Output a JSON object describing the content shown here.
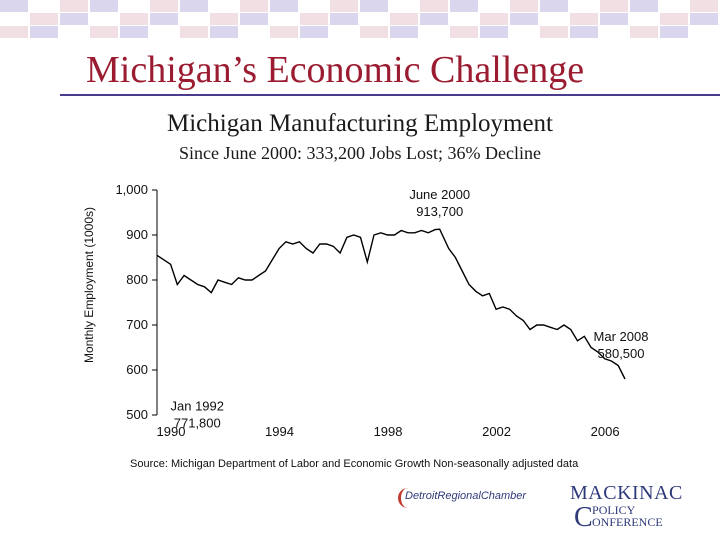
{
  "slide": {
    "title": "Michigan’s Economic Challenge",
    "source": "Source:  Michigan Department of Labor and Economic Growth Non-seasonally adjusted data",
    "logos": {
      "detroit_regional_chamber": "DetroitRegionalChamber",
      "mackinac_top": "MACKINAC",
      "mackinac_policy": "OLICY",
      "mackinac_conference": "ONFERENCE",
      "mackinac_p": "P",
      "mackinac_c": "C"
    },
    "colors": {
      "accent": "#9b1b30",
      "rule": "#4a3b8c",
      "series": "#000000"
    }
  },
  "chart_data": {
    "type": "line",
    "title": "Michigan Manufacturing Employment",
    "subtitle": "Since June 2000:  333,200 Jobs Lost; 36% Decline",
    "ylabel": "Monthly Employment (1000s)",
    "xlabel": "",
    "ylim": [
      500,
      1000
    ],
    "xlim": [
      1990,
      2007.25
    ],
    "yticks": [
      500,
      600,
      700,
      800,
      900,
      1000
    ],
    "ytick_labels": [
      "500",
      "600",
      "700",
      "800",
      "900",
      "1,000"
    ],
    "xticks": [
      1990,
      1994,
      1998,
      2002,
      2006
    ],
    "xtick_labels": [
      "1990",
      "1994",
      "1998",
      "2002",
      "2006"
    ],
    "grid": false,
    "legend": "none",
    "series": [
      {
        "x": [
          1990.0,
          1990.25,
          1990.5,
          1990.75,
          1991.0,
          1991.25,
          1991.5,
          1991.75,
          1992.0,
          1992.25,
          1992.5,
          1992.75,
          1993.0,
          1993.25,
          1993.5,
          1993.75,
          1994.0,
          1994.25,
          1994.5,
          1994.75,
          1995.0,
          1995.25,
          1995.5,
          1995.75,
          1996.0,
          1996.25,
          1996.5,
          1996.75,
          1997.0,
          1997.25,
          1997.5,
          1997.75,
          1998.0,
          1998.25,
          1998.5,
          1998.75,
          1999.0,
          1999.25,
          1999.5,
          1999.75,
          2000.0,
          2000.25,
          2000.42,
          2000.75,
          2001.0,
          2001.25,
          2001.5,
          2001.75,
          2002.0,
          2002.25,
          2002.5,
          2002.75,
          2003.0,
          2003.25,
          2003.5,
          2003.75,
          2004.0,
          2004.25,
          2004.5,
          2004.75,
          2005.0,
          2005.25,
          2005.5,
          2005.75,
          2006.0,
          2006.25,
          2006.5,
          2006.75,
          2007.0,
          2007.25
        ],
        "y": [
          855,
          845,
          835,
          790,
          810,
          800,
          790,
          785,
          772,
          800,
          795,
          790,
          805,
          800,
          800,
          810,
          820,
          845,
          870,
          885,
          880,
          885,
          870,
          860,
          880,
          880,
          875,
          860,
          895,
          900,
          895,
          840,
          900,
          905,
          900,
          900,
          910,
          905,
          905,
          910,
          905,
          912,
          913,
          870,
          850,
          820,
          790,
          775,
          765,
          770,
          735,
          740,
          735,
          720,
          710,
          690,
          700,
          700,
          695,
          690,
          700,
          690,
          665,
          675,
          650,
          640,
          625,
          620,
          610,
          580
        ]
      }
    ],
    "annotations": [
      {
        "line1": "June 2000",
        "line2": "913,700",
        "x": 2000.42,
        "y": 913.7
      },
      {
        "line1": "Jan 1992",
        "line2": "771,800",
        "x": 1992.0,
        "y": 771.8
      },
      {
        "line1": "Mar 2008",
        "line2": "580,500",
        "x": 2007.25,
        "y": 580.5
      }
    ]
  }
}
